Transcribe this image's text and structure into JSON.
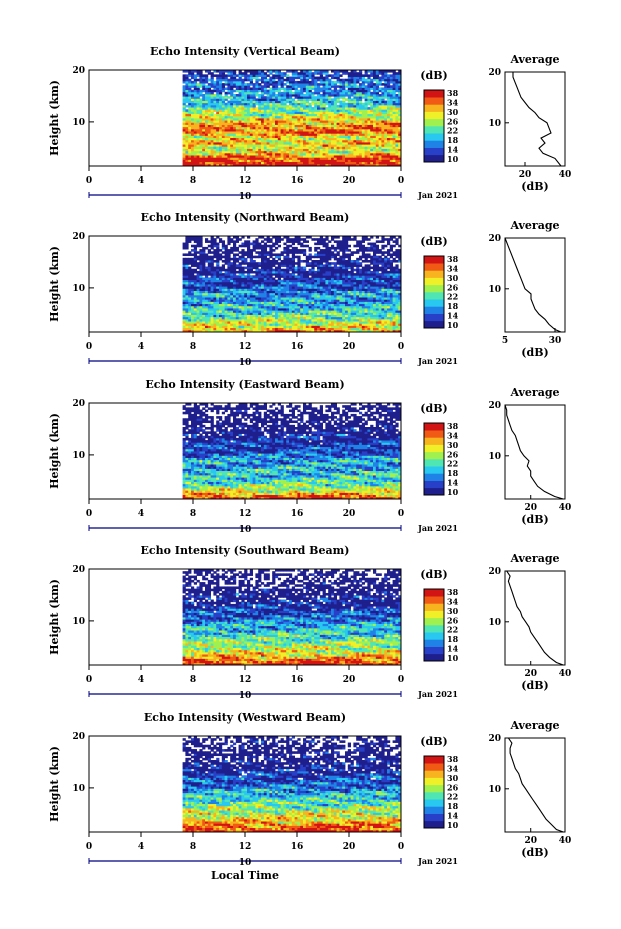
{
  "figure": {
    "xlabel": "Local Time",
    "x_ticks": [
      "0",
      "4",
      "8",
      "12",
      "16",
      "20",
      "0"
    ],
    "date_label": "Jan 2021",
    "day_label": "10",
    "colorbar_unit": "(dB)",
    "colorbar_ticks": [
      "38",
      "34",
      "30",
      "26",
      "22",
      "18",
      "14",
      "10"
    ],
    "side_title": "Average",
    "side_xlabel": "(dB)"
  },
  "chart_data": [
    {
      "type": "heatmap",
      "title": "Echo Intensity (Vertical Beam)",
      "ylabel": "Height (km)",
      "y_ticks": [
        "20",
        "10"
      ],
      "xlim_hours": [
        0,
        24
      ],
      "ylim_km": [
        1.5,
        20
      ],
      "data_start_hour": 7.2,
      "clim_db": [
        10,
        38
      ],
      "average_profile": {
        "x_ticks": [
          "20",
          "40"
        ],
        "xlim_db": [
          10,
          40
        ],
        "height_km": [
          1.5,
          3,
          4,
          5,
          6,
          7,
          8,
          9,
          10,
          11,
          12,
          13,
          14,
          15,
          16,
          17,
          18,
          19,
          20
        ],
        "db": [
          38,
          35,
          29,
          27,
          30,
          28,
          33,
          32,
          31,
          27,
          25,
          22,
          20,
          18,
          17,
          16,
          15,
          14,
          14
        ]
      }
    },
    {
      "type": "heatmap",
      "title": "Echo Intensity (Northward Beam)",
      "ylabel": "Height (km)",
      "y_ticks": [
        "20",
        "10"
      ],
      "xlim_hours": [
        0,
        24
      ],
      "ylim_km": [
        1.5,
        20
      ],
      "data_start_hour": 7.2,
      "clim_db": [
        10,
        38
      ],
      "average_profile": {
        "x_ticks": [
          "5",
          "30"
        ],
        "xlim_db": [
          5,
          35
        ],
        "height_km": [
          1.5,
          2,
          3,
          4,
          5,
          6,
          7,
          8,
          9,
          10,
          11,
          12,
          13,
          14,
          15,
          16,
          17,
          18,
          19,
          20
        ],
        "db": [
          33,
          30,
          27,
          25,
          22,
          20,
          19,
          18,
          18,
          15,
          14,
          13,
          12,
          11,
          10,
          9,
          8,
          7,
          6,
          5
        ]
      }
    },
    {
      "type": "heatmap",
      "title": "Echo Intensity (Eastward Beam)",
      "ylabel": "Height (km)",
      "y_ticks": [
        "20",
        "10"
      ],
      "xlim_hours": [
        0,
        24
      ],
      "ylim_km": [
        1.5,
        20
      ],
      "data_start_hour": 7.2,
      "clim_db": [
        10,
        38
      ],
      "average_profile": {
        "x_ticks": [
          "20",
          "40"
        ],
        "xlim_db": [
          5,
          40
        ],
        "height_km": [
          1.5,
          2,
          3,
          4,
          5,
          6,
          7,
          8,
          9,
          10,
          11,
          12,
          13,
          14,
          15,
          16,
          17,
          18,
          19,
          20
        ],
        "db": [
          39,
          34,
          28,
          24,
          22,
          20,
          20,
          18,
          19,
          16,
          14,
          13,
          12,
          11,
          9,
          8,
          7,
          6,
          6,
          5
        ]
      }
    },
    {
      "type": "heatmap",
      "title": "Echo Intensity (Southward Beam)",
      "ylabel": "Height (km)",
      "y_ticks": [
        "20",
        "10"
      ],
      "xlim_hours": [
        0,
        24
      ],
      "ylim_km": [
        1.5,
        20
      ],
      "data_start_hour": 7.2,
      "clim_db": [
        10,
        38
      ],
      "average_profile": {
        "x_ticks": [
          "20",
          "40"
        ],
        "xlim_db": [
          5,
          40
        ],
        "height_km": [
          1.5,
          2,
          3,
          4,
          5,
          6,
          7,
          8,
          9,
          10,
          11,
          12,
          13,
          14,
          15,
          16,
          17,
          18,
          19,
          20
        ],
        "db": [
          39,
          35,
          31,
          28,
          26,
          24,
          22,
          20,
          19,
          17,
          15,
          14,
          12,
          11,
          10,
          9,
          8,
          7,
          8,
          6
        ]
      }
    },
    {
      "type": "heatmap",
      "title": "Echo Intensity (Westward Beam)",
      "ylabel": "Height (km)",
      "y_ticks": [
        "20",
        "10"
      ],
      "xlim_hours": [
        0,
        24
      ],
      "ylim_km": [
        1.5,
        20
      ],
      "data_start_hour": 7.2,
      "clim_db": [
        10,
        38
      ],
      "average_profile": {
        "x_ticks": [
          "20",
          "40"
        ],
        "xlim_db": [
          5,
          40
        ],
        "height_km": [
          1.5,
          2,
          3,
          4,
          5,
          6,
          7,
          8,
          9,
          10,
          11,
          12,
          13,
          14,
          15,
          16,
          17,
          18,
          19,
          20
        ],
        "db": [
          39,
          35,
          32,
          29,
          27,
          25,
          23,
          21,
          19,
          17,
          15,
          14,
          13,
          11,
          10,
          9,
          8,
          8,
          9,
          7
        ]
      }
    }
  ],
  "colors": {
    "colormap": [
      "#1e1e8c",
      "#2840c8",
      "#1e82e6",
      "#28c8f0",
      "#50e6b4",
      "#a0f050",
      "#f0f028",
      "#f8b41e",
      "#f05a14",
      "#d21414"
    ],
    "axis": "#000000",
    "date_line": "#000080"
  }
}
